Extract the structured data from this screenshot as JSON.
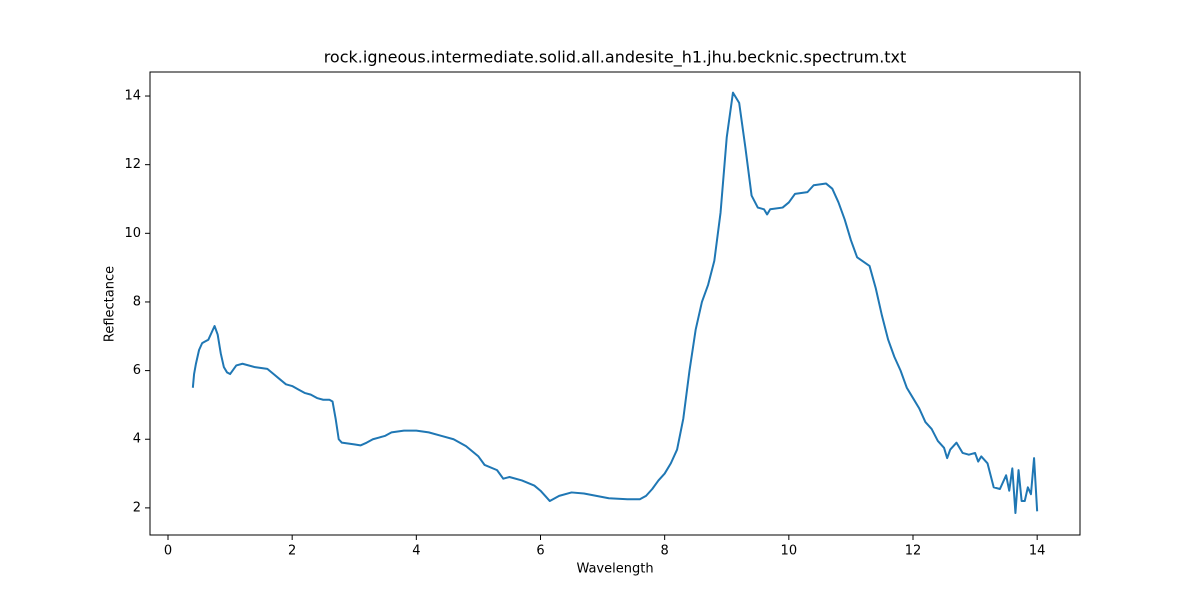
{
  "chart_data": {
    "type": "line",
    "title": "rock.igneous.intermediate.solid.all.andesite_h1.jhu.becknic.spectrum.txt",
    "x_label": "Wavelength",
    "y_label": "Reflectance",
    "xlim": [
      -0.29,
      14.69
    ],
    "ylim": [
      1.21,
      14.7
    ],
    "xticks": [
      0,
      2,
      4,
      6,
      8,
      10,
      12,
      14
    ],
    "yticks": [
      2,
      4,
      6,
      8,
      10,
      12,
      14
    ],
    "grid": false,
    "series": [
      {
        "color": "#1f77b4",
        "x": [
          0.4,
          0.42,
          0.45,
          0.5,
          0.55,
          0.6,
          0.65,
          0.7,
          0.75,
          0.8,
          0.85,
          0.9,
          0.95,
          1.0,
          1.1,
          1.2,
          1.4,
          1.6,
          1.7,
          1.8,
          1.9,
          2.0,
          2.1,
          2.2,
          2.3,
          2.4,
          2.5,
          2.6,
          2.65,
          2.7,
          2.75,
          2.8,
          3.0,
          3.1,
          3.2,
          3.3,
          3.4,
          3.5,
          3.6,
          3.8,
          4.0,
          4.2,
          4.4,
          4.6,
          4.8,
          5.0,
          5.1,
          5.3,
          5.4,
          5.5,
          5.7,
          5.9,
          6.0,
          6.1,
          6.15,
          6.3,
          6.5,
          6.7,
          6.9,
          7.1,
          7.4,
          7.6,
          7.7,
          7.8,
          7.9,
          8.0,
          8.1,
          8.2,
          8.3,
          8.4,
          8.5,
          8.6,
          8.7,
          8.8,
          8.9,
          9.0,
          9.1,
          9.2,
          9.3,
          9.4,
          9.5,
          9.6,
          9.65,
          9.7,
          9.9,
          10.0,
          10.1,
          10.3,
          10.4,
          10.6,
          10.7,
          10.8,
          10.9,
          11.0,
          11.1,
          11.3,
          11.4,
          11.5,
          11.6,
          11.7,
          11.8,
          11.9,
          12.0,
          12.1,
          12.2,
          12.3,
          12.4,
          12.5,
          12.55,
          12.6,
          12.7,
          12.8,
          12.9,
          13.0,
          13.05,
          13.1,
          13.2,
          13.3,
          13.4,
          13.5,
          13.55,
          13.6,
          13.65,
          13.7,
          13.75,
          13.8,
          13.85,
          13.9,
          13.95,
          14.0
        ],
        "values": [
          5.5,
          5.9,
          6.2,
          6.6,
          6.8,
          6.85,
          6.9,
          7.1,
          7.3,
          7.05,
          6.5,
          6.1,
          5.95,
          5.9,
          6.15,
          6.2,
          6.1,
          6.05,
          5.9,
          5.75,
          5.6,
          5.55,
          5.45,
          5.35,
          5.3,
          5.2,
          5.15,
          5.15,
          5.1,
          4.6,
          4.0,
          3.9,
          3.85,
          3.82,
          3.9,
          4.0,
          4.05,
          4.1,
          4.2,
          4.25,
          4.25,
          4.2,
          4.1,
          4.0,
          3.8,
          3.5,
          3.25,
          3.1,
          2.85,
          2.9,
          2.8,
          2.65,
          2.5,
          2.3,
          2.2,
          2.35,
          2.45,
          2.42,
          2.35,
          2.28,
          2.25,
          2.25,
          2.35,
          2.55,
          2.8,
          3.0,
          3.3,
          3.7,
          4.6,
          6.0,
          7.2,
          8.0,
          8.5,
          9.2,
          10.6,
          12.8,
          14.1,
          13.8,
          12.5,
          11.1,
          10.75,
          10.7,
          10.55,
          10.7,
          10.75,
          10.9,
          11.15,
          11.2,
          11.4,
          11.45,
          11.3,
          10.9,
          10.4,
          9.8,
          9.3,
          9.05,
          8.4,
          7.6,
          6.9,
          6.4,
          6.0,
          5.5,
          5.2,
          4.9,
          4.5,
          4.3,
          3.95,
          3.75,
          3.45,
          3.7,
          3.9,
          3.6,
          3.55,
          3.6,
          3.35,
          3.5,
          3.3,
          2.6,
          2.55,
          2.95,
          2.5,
          3.15,
          1.85,
          3.1,
          2.2,
          2.2,
          2.6,
          2.4,
          3.45,
          1.9
        ]
      }
    ]
  }
}
